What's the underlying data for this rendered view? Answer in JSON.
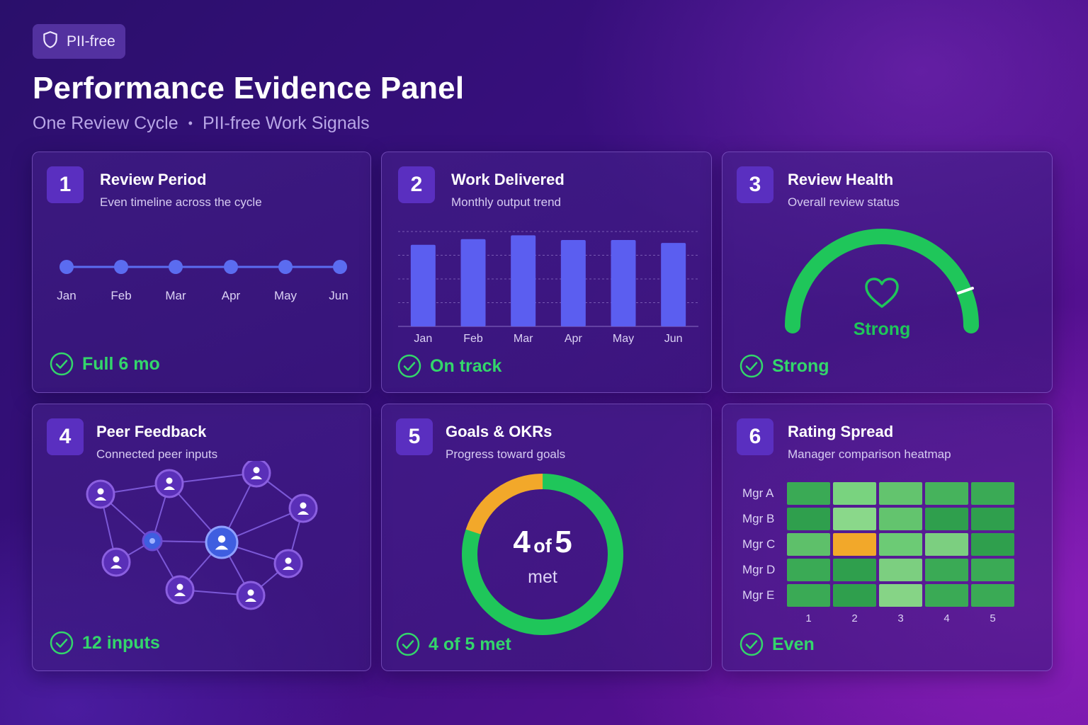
{
  "badge": {
    "label": "PII-free",
    "icon": "shield-icon"
  },
  "header": {
    "title": "Performance Evidence Panel",
    "subtitle_left": "One Review Cycle",
    "subtitle_sep": "•",
    "subtitle_right": "PII-free Work Signals"
  },
  "colors": {
    "accent_green": "#33d66b",
    "gauge_green": "#1fc65a",
    "orange": "#f2a82a",
    "bar_blue": "#5b5ef0"
  },
  "cards": [
    {
      "number": "1",
      "title": "Review Period",
      "subtitle": "Even timeline across the cycle",
      "status": "Full 6 mo",
      "months": [
        "Jan",
        "Feb",
        "Mar",
        "Apr",
        "May",
        "Jun"
      ]
    },
    {
      "number": "2",
      "title": "Work Delivered",
      "subtitle": "Monthly output trend",
      "status": "On track"
    },
    {
      "number": "3",
      "title": "Review Health",
      "subtitle": "Overall review status",
      "status": "Strong",
      "gauge_label": "Strong",
      "gauge_level": 0.92,
      "icon": "heart-icon"
    },
    {
      "number": "4",
      "title": "Peer Feedback",
      "subtitle": "Connected peer inputs",
      "status": "12 inputs"
    },
    {
      "number": "5",
      "title": "Goals & OKRs",
      "subtitle": "Progress toward goals",
      "status": "4 of 5 met",
      "donut_big_left": "4",
      "donut_of": "of",
      "donut_big_right": "5",
      "donut_caption": "met",
      "met": 4,
      "total": 5
    },
    {
      "number": "6",
      "title": "Rating Spread",
      "subtitle": "Manager comparison heatmap",
      "status": "Even",
      "rows": [
        "Mgr A",
        "Mgr B",
        "Mgr C",
        "Mgr D",
        "Mgr E"
      ],
      "cols": [
        "1",
        "2",
        "3",
        "4",
        "5"
      ],
      "heat": [
        [
          "#3aaa55",
          "#79d37f",
          "#63c46e",
          "#46b35c",
          "#3aaa55"
        ],
        [
          "#2f9f4d",
          "#8ad88a",
          "#63c46e",
          "#2f9f4d",
          "#2f9f4d"
        ],
        [
          "#5ec06a",
          "#f2a82a",
          "#6ccb75",
          "#7ccf80",
          "#2f9f4d"
        ],
        [
          "#3aaa55",
          "#2f9f4d",
          "#7ccf80",
          "#3aaa55",
          "#3aaa55"
        ],
        [
          "#3aaa55",
          "#2f9f4d",
          "#86d486",
          "#3aaa55",
          "#3aaa55"
        ]
      ]
    }
  ],
  "chart_data": {
    "type": "bar",
    "categories": [
      "Jan",
      "Feb",
      "Mar",
      "Apr",
      "May",
      "Jun"
    ],
    "values": [
      86,
      92,
      96,
      91,
      91,
      88
    ],
    "ylim": [
      0,
      100
    ],
    "grid": true
  }
}
